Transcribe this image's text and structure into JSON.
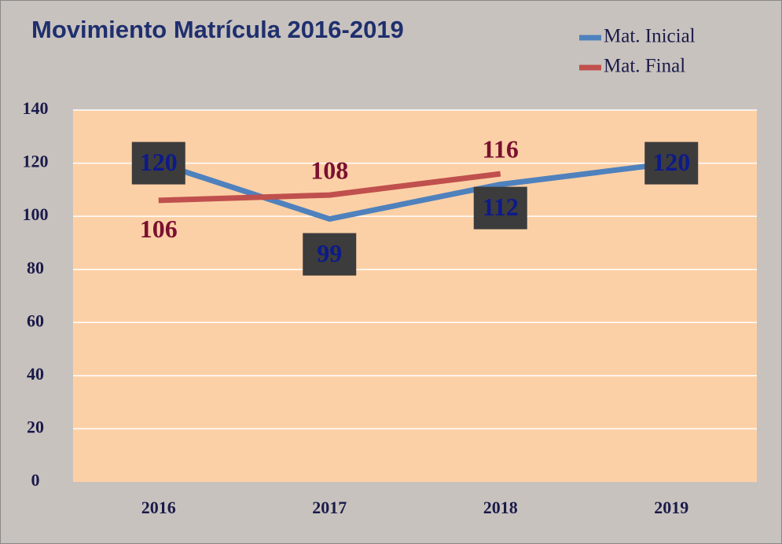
{
  "chart_data": {
    "type": "line",
    "title": "Movimiento Matrícula 2016-2019",
    "categories": [
      "2016",
      "2017",
      "2018",
      "2019"
    ],
    "series": [
      {
        "name": "Mat. Inicial",
        "color": "#4f81bd",
        "values": [
          120,
          99,
          112,
          120
        ]
      },
      {
        "name": "Mat. Final",
        "color": "#c0504d",
        "values": [
          106,
          108,
          116,
          null
        ]
      }
    ],
    "ylim": [
      0,
      140
    ],
    "yticks": [
      0,
      20,
      40,
      60,
      80,
      100,
      120,
      140
    ],
    "grid": true,
    "legend": "top-right"
  }
}
